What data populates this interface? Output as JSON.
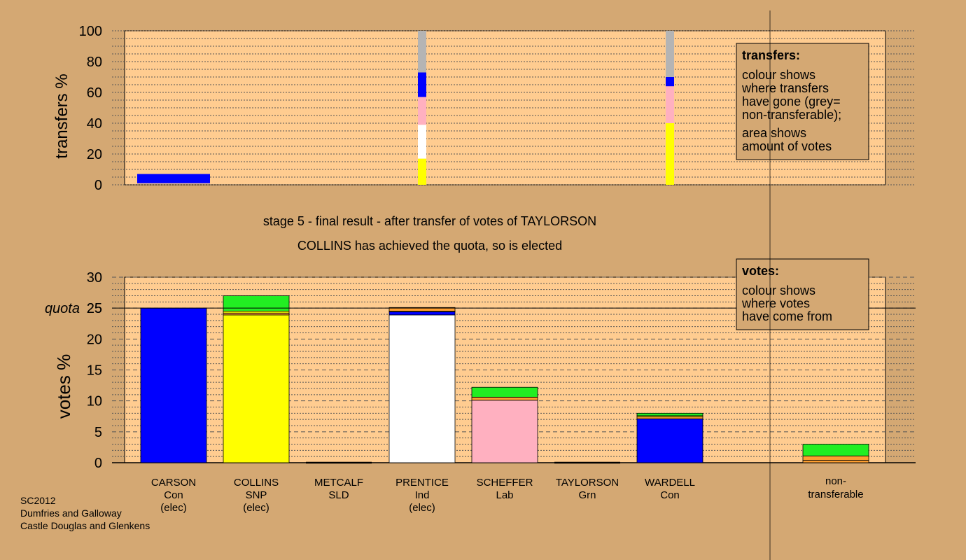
{
  "chart_data": [
    {
      "type": "bar",
      "panel": "transfers",
      "ylabel": "transfers %",
      "ylim": [
        0,
        100
      ],
      "yticks": [
        0,
        20,
        40,
        60,
        80,
        100
      ],
      "categories": [
        "CARSON",
        "COLLINS",
        "METCALF",
        "PRENTICE",
        "SCHEFFER",
        "TAYLORSON",
        "WARDELL",
        "non-transferable"
      ],
      "bars": [
        {
          "category": "CARSON",
          "note": "donor",
          "segments": [
            {
              "from": 1,
              "to": 7,
              "color": "#0000ff"
            }
          ]
        },
        {
          "category": "PRENTICE",
          "segments": [
            {
              "from": 0,
              "to": 17,
              "color": "#ffff00"
            },
            {
              "from": 17,
              "to": 39,
              "color": "#ffffff"
            },
            {
              "from": 39,
              "to": 57,
              "color": "#ffb0c0"
            },
            {
              "from": 57,
              "to": 73,
              "color": "#0000ff"
            },
            {
              "from": 73,
              "to": 100,
              "color": "#b4b4b4"
            }
          ]
        },
        {
          "category": "WARDELL",
          "segments": [
            {
              "from": 0,
              "to": 40,
              "color": "#ffff00"
            },
            {
              "from": 40,
              "to": 64,
              "color": "#ffb0c0"
            },
            {
              "from": 64,
              "to": 70,
              "color": "#0000ff"
            },
            {
              "from": 70,
              "to": 100,
              "color": "#b4b4b4"
            }
          ]
        }
      ],
      "legend": {
        "title": "transfers:",
        "lines1": [
          "colour shows",
          "where transfers",
          "have gone (grey=",
          "non-transferable);"
        ],
        "lines2": [
          "area shows",
          "amount of votes"
        ]
      }
    },
    {
      "type": "bar",
      "panel": "votes",
      "ylabel": "votes %",
      "ylim": [
        0,
        30
      ],
      "yticks": [
        0,
        5,
        10,
        15,
        20,
        25,
        30
      ],
      "quota": 25,
      "quota_label": "quota",
      "categories": [
        "CARSON",
        "COLLINS",
        "METCALF",
        "PRENTICE",
        "SCHEFFER",
        "TAYLORSON",
        "WARDELL",
        "non-transferable"
      ],
      "bars": [
        {
          "category": "CARSON",
          "segments": [
            {
              "from": 0,
              "to": 25,
              "color": "#0000ff"
            }
          ]
        },
        {
          "category": "COLLINS",
          "segments": [
            {
              "from": 0,
              "to": 23.9,
              "color": "#ffff00"
            },
            {
              "from": 23.9,
              "to": 24.2,
              "color": "#ff9f30"
            },
            {
              "from": 24.2,
              "to": 24.5,
              "color": "#ffff00"
            },
            {
              "from": 24.5,
              "to": 27,
              "color": "#22ee22"
            }
          ]
        },
        {
          "category": "METCALF",
          "segments": []
        },
        {
          "category": "PRENTICE",
          "segments": [
            {
              "from": 0,
              "to": 23.9,
              "color": "#ffffff"
            },
            {
              "from": 23.9,
              "to": 24.4,
              "color": "#0000ff"
            },
            {
              "from": 24.4,
              "to": 24.5,
              "color": "#ffb0c0"
            },
            {
              "from": 24.5,
              "to": 25.1,
              "color": "#ff9f30"
            }
          ]
        },
        {
          "category": "SCHEFFER",
          "segments": [
            {
              "from": 0,
              "to": 10.1,
              "color": "#ffb0c0"
            },
            {
              "from": 10.1,
              "to": 10.6,
              "color": "#ff9f30"
            },
            {
              "from": 10.6,
              "to": 12.2,
              "color": "#22ee22"
            }
          ]
        },
        {
          "category": "TAYLORSON",
          "segments": []
        },
        {
          "category": "WARDELL",
          "segments": [
            {
              "from": 0,
              "to": 7.1,
              "color": "#0000ff"
            },
            {
              "from": 7.1,
              "to": 7.4,
              "color": "#ff9f30"
            },
            {
              "from": 7.4,
              "to": 7.6,
              "color": "#ffff00"
            },
            {
              "from": 7.6,
              "to": 8.0,
              "color": "#22ee22"
            }
          ]
        },
        {
          "category": "non-transferable",
          "segments": [
            {
              "from": 0,
              "to": 0.4,
              "color": "#ff9f30"
            },
            {
              "from": 0.4,
              "to": 1.1,
              "color": "#ff9f30"
            },
            {
              "from": 1.1,
              "to": 3.0,
              "color": "#22ee22"
            }
          ]
        }
      ],
      "legend": {
        "title": "votes:",
        "lines1": [
          "colour shows",
          "where votes",
          "have come from"
        ]
      }
    }
  ],
  "stage_title": "stage 5 - final result - after transfer of votes of TAYLORSON",
  "stage_subtitle": "COLLINS has achieved the quota, so is elected",
  "candidates": [
    {
      "name": "CARSON",
      "party": "Con",
      "status": "(elec)"
    },
    {
      "name": "COLLINS",
      "party": "SNP",
      "status": "(elec)"
    },
    {
      "name": "METCALF",
      "party": "SLD",
      "status": ""
    },
    {
      "name": "PRENTICE",
      "party": "Ind",
      "status": "(elec)"
    },
    {
      "name": "SCHEFFER",
      "party": "Lab",
      "status": ""
    },
    {
      "name": "TAYLORSON",
      "party": "Grn",
      "status": ""
    },
    {
      "name": "WARDELL",
      "party": "Con",
      "status": ""
    }
  ],
  "nontransferable_label": [
    "non-",
    "transferable"
  ],
  "footer": [
    "SC2012",
    "Dumfries and Galloway",
    "Castle Douglas and Glenkens"
  ],
  "colors": {
    "background": "#d4a873",
    "plot_area": "#ffcc90",
    "legend_box": "#d4a873"
  }
}
